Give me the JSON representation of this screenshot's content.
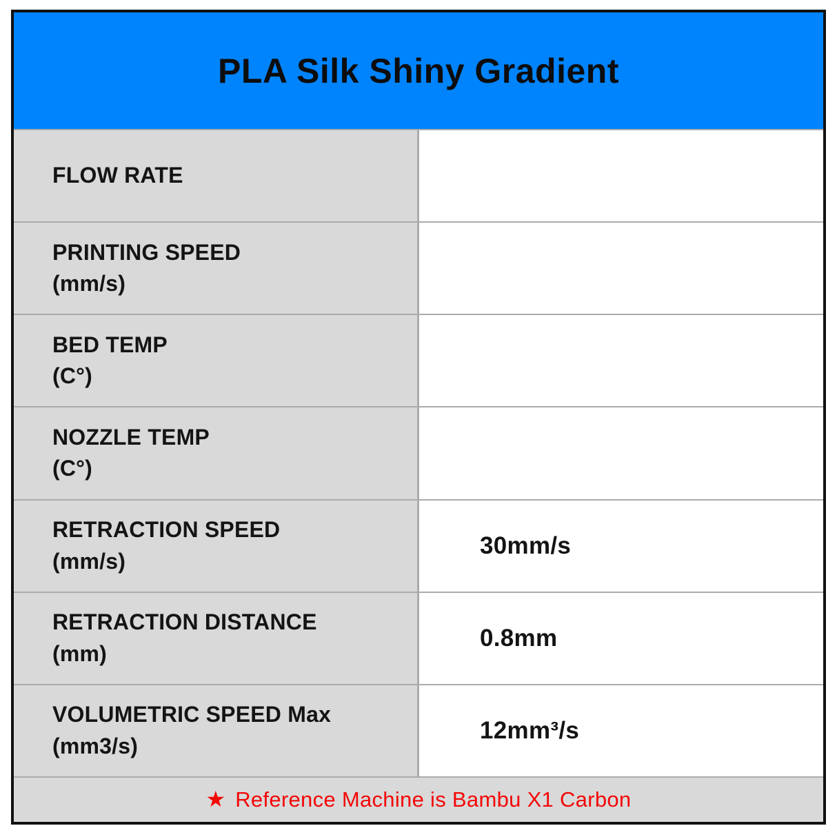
{
  "title": "PLA Silk Shiny Gradient",
  "colors": {
    "title_bar_blue": "#0084FE",
    "label_column_gray": "#D9D9D9",
    "divider_gray": "#ABABAB",
    "border_black": "#111111",
    "note_red": "#F40707"
  },
  "table": {
    "rows": [
      {
        "label": "FLOW RATE",
        "unit": "",
        "value": ""
      },
      {
        "label": "PRINTING SPEED",
        "unit": "(mm/s)",
        "value": ""
      },
      {
        "label": "BED TEMP",
        "unit": "(C°)",
        "value": ""
      },
      {
        "label": "NOZZLE TEMP",
        "unit": "(C°)",
        "value": ""
      },
      {
        "label": "RETRACTION SPEED",
        "unit": "(mm/s)",
        "value": "30mm/s"
      },
      {
        "label": "RETRACTION DISTANCE",
        "unit": "(mm)",
        "value": "0.8mm"
      },
      {
        "label": "VOLUMETRIC SPEED Max",
        "unit": "(mm3/s)",
        "value": "12mm³/s"
      }
    ]
  },
  "footer": {
    "star_icon": "★",
    "note": "Reference Machine is Bambu X1 Carbon"
  }
}
